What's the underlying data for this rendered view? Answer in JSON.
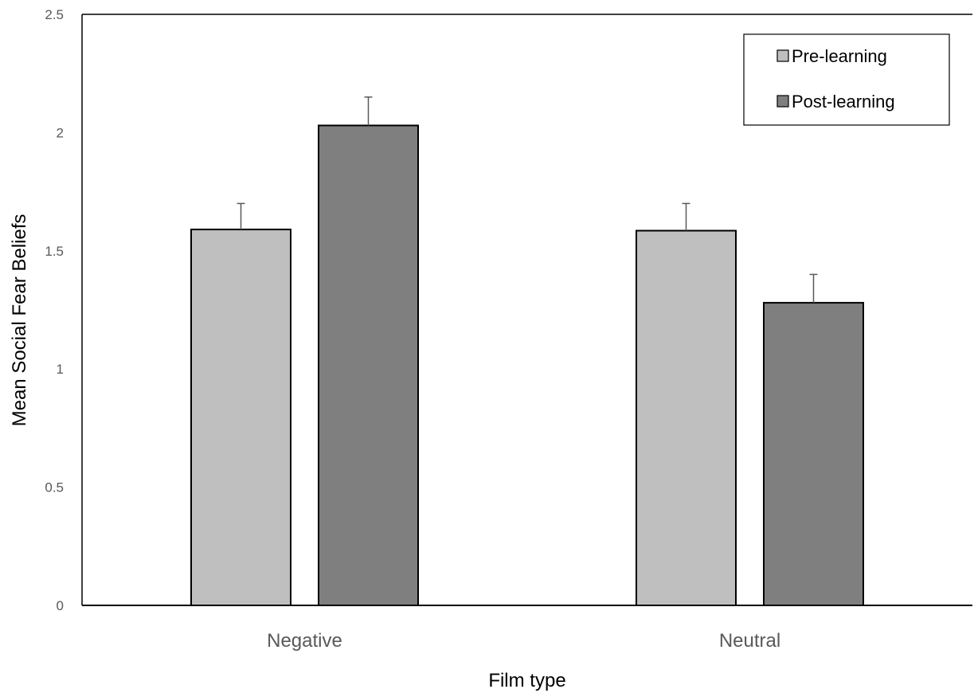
{
  "chart_data": {
    "type": "bar",
    "title": "",
    "xlabel": "Film type",
    "ylabel": "Mean Social Fear Beliefs",
    "categories": [
      "Negative",
      "Neutral"
    ],
    "ylim": [
      0,
      2.5
    ],
    "yticks": [
      0,
      0.5,
      1,
      1.5,
      2,
      2.5
    ],
    "ytick_labels": [
      "0",
      "0.5",
      "1",
      "1.5",
      "2",
      "2.5"
    ],
    "series": [
      {
        "name": "Pre-learning",
        "values": [
          1.59,
          1.585
        ],
        "errors": [
          0.11,
          0.115
        ],
        "color": "#bfbfbf"
      },
      {
        "name": "Post-learning",
        "values": [
          2.03,
          1.28
        ],
        "errors": [
          0.12,
          0.12
        ],
        "color": "#7f7f7f"
      }
    ],
    "error_bars": "upper",
    "grid": false,
    "legend_position": "top-right",
    "axis_line_color": "#000000",
    "bar_edge_color": "#000000",
    "error_bar_color": "#595959"
  }
}
